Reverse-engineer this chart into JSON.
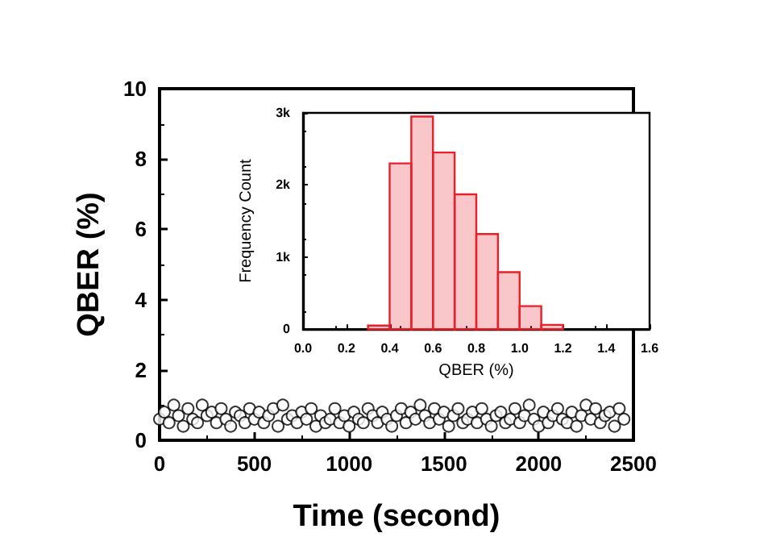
{
  "chart_data": [
    {
      "type": "scatter",
      "xlabel": "Time (second)",
      "ylabel": "QBER (%)",
      "xlim": [
        0,
        2500
      ],
      "xticks": [
        0,
        500,
        1000,
        1500,
        2000,
        2500
      ],
      "ylim": [
        0,
        10
      ],
      "yticks": [
        0,
        2,
        4,
        6,
        8,
        10
      ],
      "grid": false,
      "marker": "circle",
      "series": [
        {
          "color": "#000000",
          "x": [
            0,
            25,
            50,
            75,
            100,
            125,
            150,
            175,
            200,
            225,
            250,
            275,
            300,
            325,
            350,
            375,
            400,
            425,
            450,
            475,
            500,
            525,
            550,
            575,
            600,
            625,
            650,
            675,
            700,
            725,
            750,
            775,
            800,
            825,
            850,
            875,
            900,
            925,
            950,
            975,
            1000,
            1025,
            1050,
            1075,
            1100,
            1125,
            1150,
            1175,
            1200,
            1225,
            1250,
            1275,
            1300,
            1325,
            1350,
            1375,
            1400,
            1425,
            1450,
            1475,
            1500,
            1525,
            1550,
            1575,
            1600,
            1625,
            1650,
            1675,
            1700,
            1725,
            1750,
            1775,
            1800,
            1825,
            1850,
            1875,
            1900,
            1925,
            1950,
            1975,
            2000,
            2025,
            2050,
            2075,
            2100,
            2125,
            2150,
            2175,
            2200,
            2225,
            2250,
            2275,
            2300,
            2325,
            2350,
            2375,
            2400,
            2425,
            2450
          ],
          "values": [
            0.6,
            0.8,
            0.5,
            1.0,
            0.7,
            0.4,
            0.9,
            0.6,
            0.5,
            1.0,
            0.7,
            0.8,
            0.5,
            0.9,
            0.6,
            0.4,
            0.8,
            0.7,
            0.5,
            0.9,
            0.6,
            0.8,
            0.5,
            0.7,
            0.9,
            0.4,
            1.0,
            0.6,
            0.7,
            0.5,
            0.8,
            0.6,
            0.9,
            0.4,
            0.7,
            0.5,
            0.6,
            0.9,
            0.5,
            0.7,
            0.4,
            0.8,
            0.6,
            0.5,
            0.9,
            0.7,
            0.5,
            0.8,
            0.6,
            0.4,
            0.7,
            0.9,
            0.5,
            0.8,
            0.6,
            1.0,
            0.7,
            0.5,
            0.9,
            0.6,
            0.8,
            0.4,
            0.7,
            0.9,
            0.5,
            0.6,
            0.8,
            0.5,
            0.9,
            0.6,
            0.4,
            0.7,
            0.8,
            0.5,
            0.6,
            0.9,
            0.5,
            0.7,
            1.0,
            0.6,
            0.4,
            0.8,
            0.5,
            0.7,
            0.9,
            0.6,
            0.5,
            0.8,
            0.4,
            0.7,
            1.0,
            0.6,
            0.9,
            0.5,
            0.7,
            0.8,
            0.4,
            0.9,
            0.6
          ]
        }
      ]
    },
    {
      "type": "histogram",
      "xlabel": "QBER (%)",
      "ylabel": "Frequency Count",
      "xlim": [
        0,
        1.6
      ],
      "xticks": [
        {
          "value": 0,
          "label": "0.0"
        },
        0.2,
        0.4,
        0.6,
        0.8,
        {
          "value": 1,
          "label": "1.0"
        },
        1.2,
        1.4,
        1.6
      ],
      "ylim": [
        0,
        3000
      ],
      "yticks": [
        0,
        {
          "value": 1000,
          "label": "1k"
        },
        {
          "value": 2000,
          "label": "2k"
        },
        {
          "value": 3000,
          "label": "3k"
        }
      ],
      "grid": false,
      "color": "#e8202a",
      "bins": [
        0.3,
        0.4,
        0.5,
        0.6,
        0.7,
        0.8,
        0.9,
        1.0,
        1.1,
        1.2
      ],
      "values": [
        50,
        2300,
        2950,
        2450,
        1870,
        1320,
        790,
        320,
        60
      ]
    }
  ]
}
